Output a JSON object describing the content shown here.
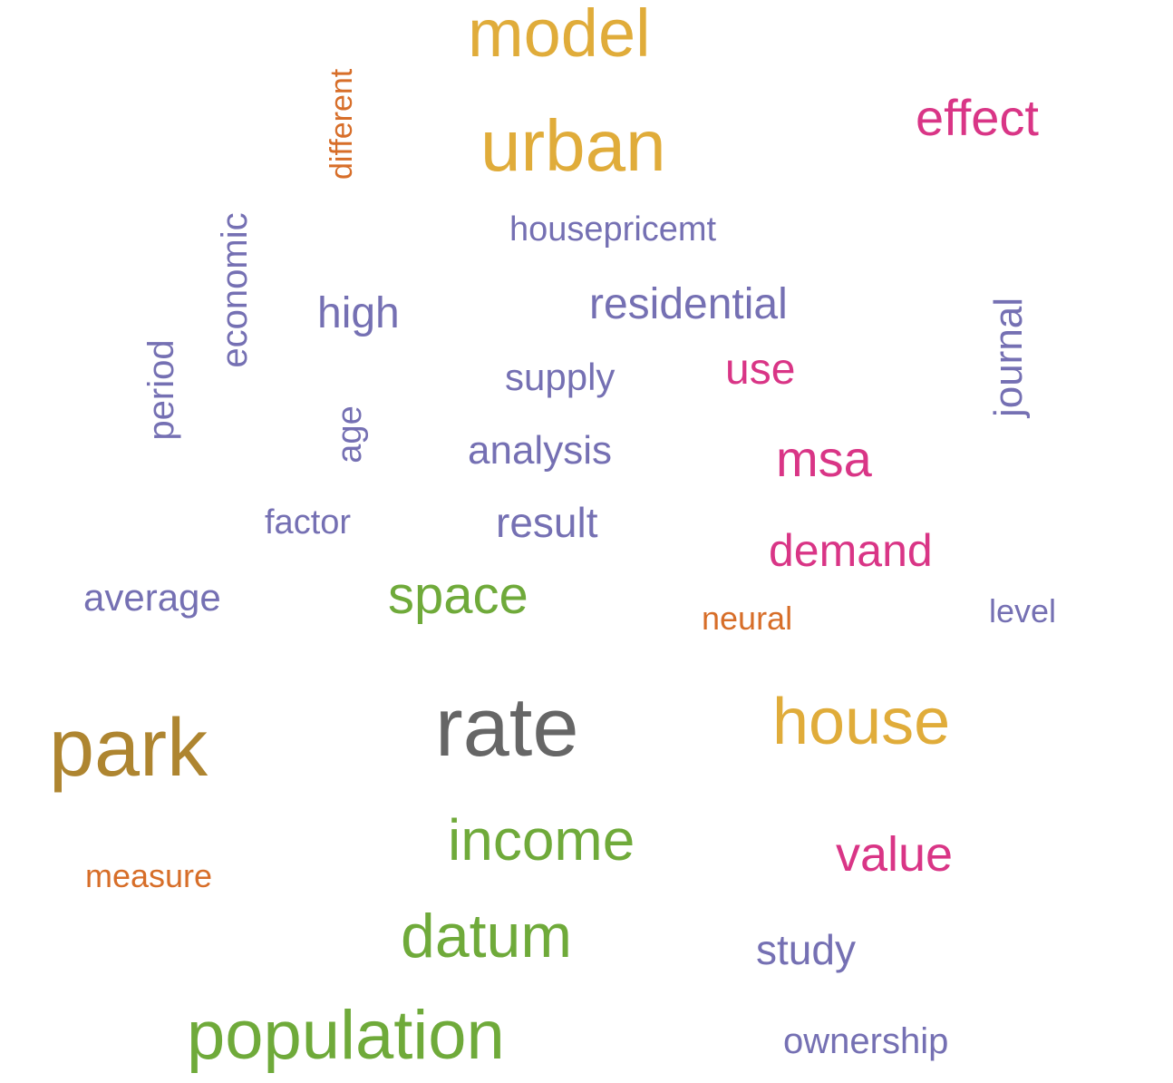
{
  "colors": {
    "gold": "#E0AC3A",
    "pink": "#D93586",
    "purple": "#7570B3",
    "orange": "#D76E29",
    "green": "#6FAA3A",
    "gray": "#666666",
    "brown": "#AE8530"
  },
  "words": [
    {
      "key": "model",
      "text": "model",
      "color": "gold",
      "orientation": "horizontal"
    },
    {
      "key": "urban",
      "text": "urban",
      "color": "gold",
      "orientation": "horizontal"
    },
    {
      "key": "effect",
      "text": "effect",
      "color": "pink",
      "orientation": "horizontal"
    },
    {
      "key": "different",
      "text": "different",
      "color": "orange",
      "orientation": "vertical"
    },
    {
      "key": "economic",
      "text": "economic",
      "color": "purple",
      "orientation": "vertical"
    },
    {
      "key": "housepricemt",
      "text": "housepricemt",
      "color": "purple",
      "orientation": "horizontal"
    },
    {
      "key": "high",
      "text": "high",
      "color": "purple",
      "orientation": "horizontal"
    },
    {
      "key": "residential",
      "text": "residential",
      "color": "purple",
      "orientation": "horizontal"
    },
    {
      "key": "period",
      "text": "period",
      "color": "purple",
      "orientation": "vertical"
    },
    {
      "key": "journal",
      "text": "journal",
      "color": "purple",
      "orientation": "vertical"
    },
    {
      "key": "supply",
      "text": "supply",
      "color": "purple",
      "orientation": "horizontal"
    },
    {
      "key": "use",
      "text": "use",
      "color": "pink",
      "orientation": "horizontal"
    },
    {
      "key": "age",
      "text": "age",
      "color": "purple",
      "orientation": "vertical"
    },
    {
      "key": "analysis",
      "text": "analysis",
      "color": "purple",
      "orientation": "horizontal"
    },
    {
      "key": "msa",
      "text": "msa",
      "color": "pink",
      "orientation": "horizontal"
    },
    {
      "key": "factor",
      "text": "factor",
      "color": "purple",
      "orientation": "horizontal"
    },
    {
      "key": "result",
      "text": "result",
      "color": "purple",
      "orientation": "horizontal"
    },
    {
      "key": "demand",
      "text": "demand",
      "color": "pink",
      "orientation": "horizontal"
    },
    {
      "key": "average",
      "text": "average",
      "color": "purple",
      "orientation": "horizontal"
    },
    {
      "key": "space",
      "text": "space",
      "color": "green",
      "orientation": "horizontal"
    },
    {
      "key": "neural",
      "text": "neural",
      "color": "orange",
      "orientation": "horizontal"
    },
    {
      "key": "level",
      "text": "level",
      "color": "purple",
      "orientation": "horizontal"
    },
    {
      "key": "rate",
      "text": "rate",
      "color": "gray",
      "orientation": "horizontal"
    },
    {
      "key": "park",
      "text": "park",
      "color": "brown",
      "orientation": "horizontal"
    },
    {
      "key": "house",
      "text": "house",
      "color": "gold",
      "orientation": "horizontal"
    },
    {
      "key": "income",
      "text": "income",
      "color": "green",
      "orientation": "horizontal"
    },
    {
      "key": "value",
      "text": "value",
      "color": "pink",
      "orientation": "horizontal"
    },
    {
      "key": "measure",
      "text": "measure",
      "color": "orange",
      "orientation": "horizontal"
    },
    {
      "key": "datum",
      "text": "datum",
      "color": "green",
      "orientation": "horizontal"
    },
    {
      "key": "study",
      "text": "study",
      "color": "purple",
      "orientation": "horizontal"
    },
    {
      "key": "population",
      "text": "population",
      "color": "green",
      "orientation": "horizontal"
    },
    {
      "key": "ownership",
      "text": "ownership",
      "color": "purple",
      "orientation": "horizontal"
    }
  ]
}
